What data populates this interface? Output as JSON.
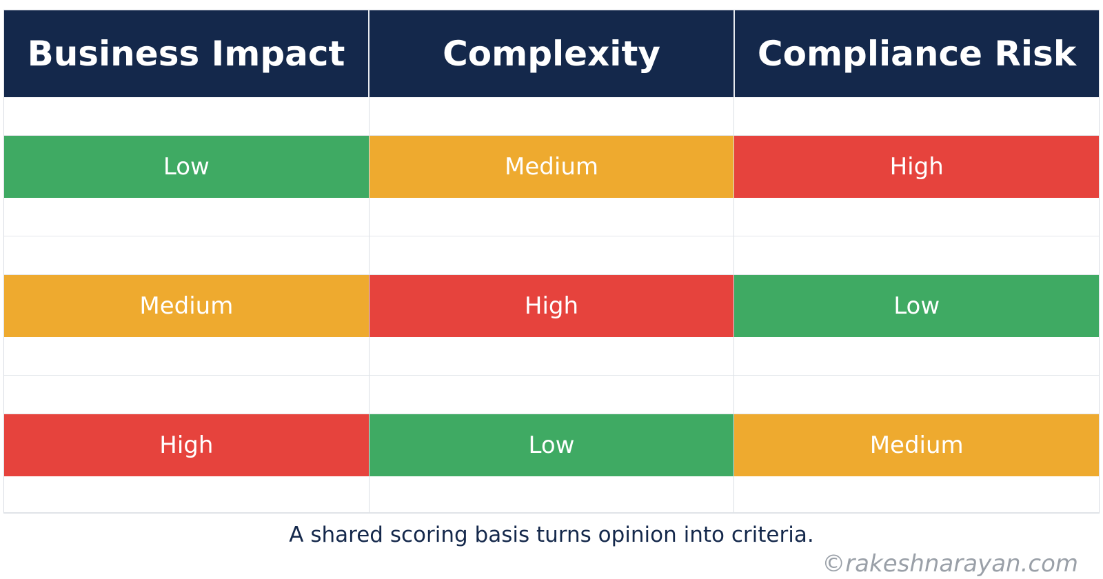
{
  "headers": [
    "Business Impact",
    "Complexity",
    "Compliance Risk"
  ],
  "rows": [
    [
      {
        "label": "Low",
        "color": "#3faa63"
      },
      {
        "label": "Medium",
        "color": "#eeaa2f"
      },
      {
        "label": "High",
        "color": "#e6433d"
      }
    ],
    [
      {
        "label": "Medium",
        "color": "#eeaa2f"
      },
      {
        "label": "High",
        "color": "#e6433d"
      },
      {
        "label": "Low",
        "color": "#3faa63"
      }
    ],
    [
      {
        "label": "High",
        "color": "#e6433d"
      },
      {
        "label": "Low",
        "color": "#3faa63"
      },
      {
        "label": "Medium",
        "color": "#eeaa2f"
      }
    ]
  ],
  "caption": "A shared scoring basis turns opinion into criteria.",
  "watermark": "©rakeshnarayan.com",
  "colors": {
    "header_bg": "#14284b",
    "low": "#3faa63",
    "medium": "#eeaa2f",
    "high": "#e6433d"
  }
}
